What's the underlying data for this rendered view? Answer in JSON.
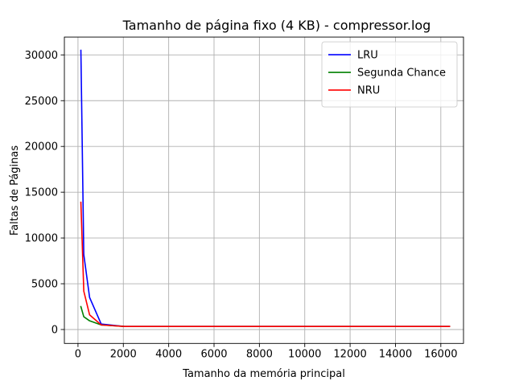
{
  "chart_data": {
    "type": "line",
    "title": "Tamanho de página fixo (4 KB) - compressor.log",
    "xlabel": "Tamanho da memória principal",
    "ylabel": "Faltas de Páginas",
    "xlim": [
      -600,
      17000
    ],
    "ylim": [
      -1520,
      31950
    ],
    "xticks": [
      0,
      2000,
      4000,
      6000,
      8000,
      10000,
      12000,
      14000,
      16000
    ],
    "xtick_labels": [
      "0",
      "2000",
      "4000",
      "6000",
      "8000",
      "10000",
      "12000",
      "14000",
      "16000"
    ],
    "yticks": [
      0,
      5000,
      10000,
      15000,
      20000,
      25000,
      30000
    ],
    "ytick_labels": [
      "0",
      "5000",
      "10000",
      "15000",
      "20000",
      "25000",
      "30000"
    ],
    "grid": true,
    "legend_position": "top-right",
    "series": [
      {
        "name": "LRU",
        "color": "#0000ff",
        "x": [
          128,
          256,
          512,
          1024,
          2048,
          4096,
          8192,
          16384
        ],
        "y": [
          30500,
          8200,
          3500,
          600,
          330,
          330,
          330,
          330
        ]
      },
      {
        "name": "Segunda Chance",
        "color": "#008000",
        "x": [
          128,
          256,
          512,
          1024,
          2048,
          4096,
          8192,
          16384
        ],
        "y": [
          2500,
          1400,
          950,
          500,
          330,
          330,
          330,
          330
        ]
      },
      {
        "name": "NRU",
        "color": "#ff0000",
        "x": [
          128,
          256,
          512,
          1024,
          2048,
          4096,
          8192,
          16384
        ],
        "y": [
          13900,
          4200,
          1600,
          500,
          330,
          330,
          330,
          330
        ]
      }
    ]
  }
}
